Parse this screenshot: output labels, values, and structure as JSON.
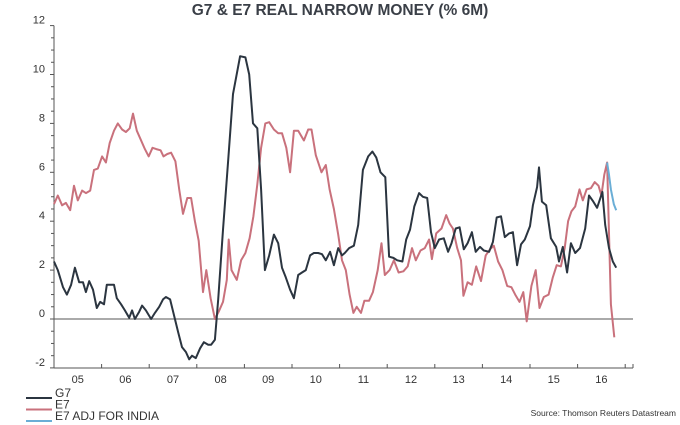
{
  "chart_data": {
    "type": "line",
    "title": "G7 & E7 REAL NARROW MONEY (% 6M)",
    "xlabel": "",
    "ylabel": "",
    "xlim": [
      2005.0,
      2016.85
    ],
    "ylim": [
      -2,
      12
    ],
    "yticks": [
      -2,
      0,
      2,
      4,
      6,
      8,
      10,
      12
    ],
    "ytick_labels": [
      "-2",
      "0",
      "2",
      "4",
      "6",
      "8",
      "10",
      "12"
    ],
    "xtick_labels": [
      "05",
      "06",
      "07",
      "08",
      "09",
      "10",
      "11",
      "12",
      "13",
      "14",
      "15",
      "16"
    ],
    "zero_line": true,
    "grid": false,
    "legend_position": "bottom-left",
    "source": "Source: Thomson Reuters Datastream",
    "series": [
      {
        "name": "G7",
        "color": "#2b3540",
        "points": [
          [
            2005.0,
            2.35
          ],
          [
            2005.08,
            2.0
          ],
          [
            2005.19,
            1.3
          ],
          [
            2005.27,
            1.0
          ],
          [
            2005.36,
            1.4
          ],
          [
            2005.44,
            2.1
          ],
          [
            2005.53,
            1.5
          ],
          [
            2005.61,
            1.5
          ],
          [
            2005.67,
            1.1
          ],
          [
            2005.74,
            1.55
          ],
          [
            2005.82,
            1.2
          ],
          [
            2005.9,
            0.45
          ],
          [
            2005.97,
            0.7
          ],
          [
            2006.05,
            0.6
          ],
          [
            2006.11,
            1.4
          ],
          [
            2006.2,
            1.4
          ],
          [
            2006.26,
            1.4
          ],
          [
            2006.32,
            0.85
          ],
          [
            2006.41,
            0.6
          ],
          [
            2006.49,
            0.35
          ],
          [
            2006.58,
            0.05
          ],
          [
            2006.64,
            0.35
          ],
          [
            2006.7,
            0.0
          ],
          [
            2006.79,
            0.3
          ],
          [
            2006.85,
            0.55
          ],
          [
            2006.93,
            0.35
          ],
          [
            2007.04,
            0.0
          ],
          [
            2007.12,
            0.25
          ],
          [
            2007.21,
            0.5
          ],
          [
            2007.29,
            0.8
          ],
          [
            2007.35,
            0.9
          ],
          [
            2007.44,
            0.8
          ],
          [
            2007.52,
            0.15
          ],
          [
            2007.61,
            -0.55
          ],
          [
            2007.69,
            -1.15
          ],
          [
            2007.77,
            -1.35
          ],
          [
            2007.84,
            -1.65
          ],
          [
            2007.9,
            -1.5
          ],
          [
            2007.98,
            -1.6
          ],
          [
            2008.07,
            -1.2
          ],
          [
            2008.15,
            -0.95
          ],
          [
            2008.24,
            -1.05
          ],
          [
            2008.3,
            -1.05
          ],
          [
            2008.38,
            -0.85
          ],
          [
            2008.45,
            0.8
          ],
          [
            2008.55,
            3.65
          ],
          [
            2008.66,
            6.5
          ],
          [
            2008.76,
            9.2
          ],
          [
            2008.91,
            10.75
          ],
          [
            2009.02,
            10.7
          ],
          [
            2009.1,
            10.0
          ],
          [
            2009.18,
            8.0
          ],
          [
            2009.27,
            7.8
          ],
          [
            2009.35,
            5.3
          ],
          [
            2009.43,
            2.0
          ],
          [
            2009.52,
            2.6
          ],
          [
            2009.62,
            3.45
          ],
          [
            2009.71,
            3.1
          ],
          [
            2009.79,
            2.1
          ],
          [
            2009.87,
            1.7
          ],
          [
            2009.96,
            1.2
          ],
          [
            2010.04,
            0.85
          ],
          [
            2010.13,
            1.8
          ],
          [
            2010.21,
            1.9
          ],
          [
            2010.29,
            2.0
          ],
          [
            2010.38,
            2.6
          ],
          [
            2010.46,
            2.7
          ],
          [
            2010.55,
            2.7
          ],
          [
            2010.63,
            2.65
          ],
          [
            2010.71,
            2.4
          ],
          [
            2010.8,
            2.75
          ],
          [
            2010.88,
            2.2
          ],
          [
            2010.97,
            2.9
          ],
          [
            2011.05,
            2.6
          ],
          [
            2011.11,
            2.7
          ],
          [
            2011.2,
            2.9
          ],
          [
            2011.3,
            3.0
          ],
          [
            2011.39,
            3.85
          ],
          [
            2011.49,
            6.1
          ],
          [
            2011.6,
            6.65
          ],
          [
            2011.69,
            6.85
          ],
          [
            2011.77,
            6.6
          ],
          [
            2011.86,
            6.0
          ],
          [
            2011.96,
            5.8
          ],
          [
            2012.04,
            2.55
          ],
          [
            2012.13,
            2.5
          ],
          [
            2012.21,
            2.4
          ],
          [
            2012.32,
            2.35
          ],
          [
            2012.4,
            3.25
          ],
          [
            2012.48,
            3.65
          ],
          [
            2012.57,
            4.6
          ],
          [
            2012.67,
            5.15
          ],
          [
            2012.75,
            5.0
          ],
          [
            2012.84,
            4.95
          ],
          [
            2012.92,
            3.55
          ],
          [
            2013.0,
            2.9
          ],
          [
            2013.09,
            3.25
          ],
          [
            2013.19,
            3.3
          ],
          [
            2013.28,
            2.75
          ],
          [
            2013.35,
            3.1
          ],
          [
            2013.44,
            3.7
          ],
          [
            2013.52,
            3.75
          ],
          [
            2013.61,
            2.85
          ],
          [
            2013.69,
            3.1
          ],
          [
            2013.78,
            3.55
          ],
          [
            2013.86,
            2.75
          ],
          [
            2013.95,
            2.95
          ],
          [
            2014.03,
            2.8
          ],
          [
            2014.14,
            2.75
          ],
          [
            2014.22,
            3.15
          ],
          [
            2014.3,
            4.15
          ],
          [
            2014.39,
            4.2
          ],
          [
            2014.47,
            3.35
          ],
          [
            2014.56,
            3.5
          ],
          [
            2014.64,
            3.55
          ],
          [
            2014.73,
            2.2
          ],
          [
            2014.81,
            3.05
          ],
          [
            2014.89,
            3.25
          ],
          [
            2015.0,
            3.8
          ],
          [
            2015.06,
            4.65
          ],
          [
            2015.15,
            5.4
          ],
          [
            2015.19,
            6.2
          ],
          [
            2015.25,
            4.8
          ],
          [
            2015.34,
            4.65
          ],
          [
            2015.44,
            3.3
          ],
          [
            2015.55,
            2.95
          ],
          [
            2015.61,
            2.35
          ],
          [
            2015.69,
            2.95
          ],
          [
            2015.78,
            1.9
          ],
          [
            2015.86,
            3.1
          ],
          [
            2015.95,
            2.7
          ],
          [
            2016.05,
            2.9
          ],
          [
            2016.16,
            3.7
          ],
          [
            2016.24,
            5.05
          ],
          [
            2016.33,
            4.8
          ],
          [
            2016.41,
            4.55
          ],
          [
            2016.52,
            5.2
          ],
          [
            2016.58,
            3.85
          ],
          [
            2016.66,
            2.9
          ],
          [
            2016.74,
            2.35
          ],
          [
            2016.81,
            2.1
          ]
        ]
      },
      {
        "name": "E7",
        "color": "#c9717c",
        "points": [
          [
            2005.0,
            4.7
          ],
          [
            2005.08,
            5.05
          ],
          [
            2005.17,
            4.65
          ],
          [
            2005.25,
            4.75
          ],
          [
            2005.34,
            4.45
          ],
          [
            2005.42,
            5.45
          ],
          [
            2005.5,
            4.85
          ],
          [
            2005.59,
            5.25
          ],
          [
            2005.67,
            5.15
          ],
          [
            2005.76,
            5.25
          ],
          [
            2005.84,
            6.1
          ],
          [
            2005.92,
            6.15
          ],
          [
            2006.01,
            6.65
          ],
          [
            2006.09,
            6.4
          ],
          [
            2006.17,
            7.2
          ],
          [
            2006.26,
            7.7
          ],
          [
            2006.34,
            8.0
          ],
          [
            2006.43,
            7.75
          ],
          [
            2006.51,
            7.65
          ],
          [
            2006.59,
            7.8
          ],
          [
            2006.66,
            8.4
          ],
          [
            2006.74,
            7.7
          ],
          [
            2006.82,
            7.35
          ],
          [
            2006.91,
            6.95
          ],
          [
            2006.99,
            6.65
          ],
          [
            2007.07,
            7.0
          ],
          [
            2007.15,
            6.95
          ],
          [
            2007.24,
            6.9
          ],
          [
            2007.3,
            6.65
          ],
          [
            2007.38,
            6.75
          ],
          [
            2007.46,
            6.8
          ],
          [
            2007.55,
            6.45
          ],
          [
            2007.63,
            5.3
          ],
          [
            2007.71,
            4.3
          ],
          [
            2007.8,
            4.95
          ],
          [
            2007.88,
            4.95
          ],
          [
            2007.96,
            4.0
          ],
          [
            2008.04,
            3.2
          ],
          [
            2008.13,
            1.1
          ],
          [
            2008.2,
            2.0
          ],
          [
            2008.29,
            0.85
          ],
          [
            2008.38,
            0.0
          ],
          [
            2008.46,
            0.3
          ],
          [
            2008.55,
            0.7
          ],
          [
            2008.63,
            1.6
          ],
          [
            2008.67,
            3.25
          ],
          [
            2008.73,
            2.0
          ],
          [
            2008.84,
            1.6
          ],
          [
            2008.93,
            2.4
          ],
          [
            2009.02,
            2.7
          ],
          [
            2009.11,
            3.3
          ],
          [
            2009.19,
            4.2
          ],
          [
            2009.27,
            5.5
          ],
          [
            2009.35,
            7.0
          ],
          [
            2009.44,
            8.0
          ],
          [
            2009.52,
            8.05
          ],
          [
            2009.62,
            7.75
          ],
          [
            2009.71,
            7.6
          ],
          [
            2009.79,
            7.6
          ],
          [
            2009.88,
            7.0
          ],
          [
            2009.96,
            6.0
          ],
          [
            2010.04,
            7.7
          ],
          [
            2010.13,
            7.7
          ],
          [
            2010.25,
            7.3
          ],
          [
            2010.34,
            7.75
          ],
          [
            2010.41,
            7.75
          ],
          [
            2010.5,
            6.7
          ],
          [
            2010.62,
            6.0
          ],
          [
            2010.71,
            6.3
          ],
          [
            2010.79,
            5.3
          ],
          [
            2010.88,
            4.5
          ],
          [
            2010.97,
            3.45
          ],
          [
            2011.05,
            2.4
          ],
          [
            2011.13,
            2.0
          ],
          [
            2011.21,
            1.0
          ],
          [
            2011.29,
            0.25
          ],
          [
            2011.36,
            0.5
          ],
          [
            2011.45,
            0.25
          ],
          [
            2011.52,
            0.75
          ],
          [
            2011.62,
            0.75
          ],
          [
            2011.7,
            1.1
          ],
          [
            2011.8,
            2.0
          ],
          [
            2011.88,
            3.1
          ],
          [
            2011.95,
            1.8
          ],
          [
            2012.05,
            2.0
          ],
          [
            2012.14,
            2.4
          ],
          [
            2012.24,
            1.9
          ],
          [
            2012.34,
            1.95
          ],
          [
            2012.43,
            2.15
          ],
          [
            2012.52,
            2.9
          ],
          [
            2012.6,
            2.4
          ],
          [
            2012.7,
            2.8
          ],
          [
            2012.79,
            2.9
          ],
          [
            2012.88,
            3.25
          ],
          [
            2012.94,
            2.45
          ],
          [
            2013.03,
            3.5
          ],
          [
            2013.14,
            3.7
          ],
          [
            2013.24,
            4.25
          ],
          [
            2013.31,
            3.9
          ],
          [
            2013.38,
            3.7
          ],
          [
            2013.47,
            2.9
          ],
          [
            2013.55,
            2.4
          ],
          [
            2013.6,
            0.95
          ],
          [
            2013.69,
            1.5
          ],
          [
            2013.78,
            1.4
          ],
          [
            2013.87,
            2.15
          ],
          [
            2013.97,
            1.55
          ],
          [
            2014.07,
            2.6
          ],
          [
            2014.16,
            2.85
          ],
          [
            2014.24,
            3.0
          ],
          [
            2014.33,
            2.35
          ],
          [
            2014.42,
            2.0
          ],
          [
            2014.52,
            1.35
          ],
          [
            2014.61,
            1.3
          ],
          [
            2014.69,
            1.0
          ],
          [
            2014.78,
            0.7
          ],
          [
            2014.86,
            1.1
          ],
          [
            2014.93,
            -0.1
          ],
          [
            2015.03,
            1.35
          ],
          [
            2015.12,
            2.0
          ],
          [
            2015.2,
            0.45
          ],
          [
            2015.29,
            0.9
          ],
          [
            2015.39,
            1.0
          ],
          [
            2015.48,
            1.7
          ],
          [
            2015.56,
            2.2
          ],
          [
            2015.65,
            2.15
          ],
          [
            2015.73,
            2.9
          ],
          [
            2015.8,
            4.0
          ],
          [
            2015.87,
            4.4
          ],
          [
            2015.95,
            4.6
          ],
          [
            2016.04,
            5.3
          ],
          [
            2016.11,
            4.85
          ],
          [
            2016.19,
            5.3
          ],
          [
            2016.28,
            5.35
          ],
          [
            2016.36,
            5.6
          ],
          [
            2016.44,
            5.45
          ],
          [
            2016.5,
            5.05
          ],
          [
            2016.56,
            5.9
          ],
          [
            2016.62,
            6.4
          ],
          [
            2016.66,
            3.5
          ],
          [
            2016.7,
            0.6
          ],
          [
            2016.77,
            -0.75
          ]
        ]
      },
      {
        "name": "E7 ADJ FOR INDIA",
        "color": "#6aaed6",
        "points": [
          [
            2016.62,
            6.4
          ],
          [
            2016.66,
            5.9
          ],
          [
            2016.7,
            5.3
          ],
          [
            2016.76,
            4.7
          ],
          [
            2016.81,
            4.45
          ]
        ]
      }
    ]
  }
}
